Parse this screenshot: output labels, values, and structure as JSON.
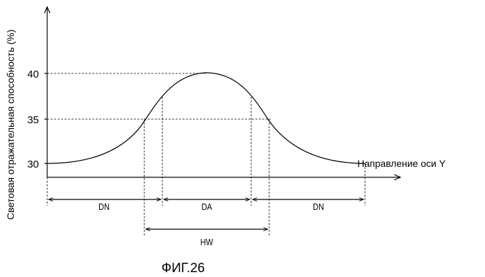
{
  "figure": {
    "caption": "ФИГ.26",
    "y_axis_label": "Световая отражательная способность (%)",
    "x_axis_label": "Направление оси Y",
    "y_ticks": [
      "40",
      "35",
      "30"
    ],
    "spans": {
      "dn_left": "DN",
      "da": "DA",
      "dn_right": "DN",
      "hw": "HW"
    }
  }
}
